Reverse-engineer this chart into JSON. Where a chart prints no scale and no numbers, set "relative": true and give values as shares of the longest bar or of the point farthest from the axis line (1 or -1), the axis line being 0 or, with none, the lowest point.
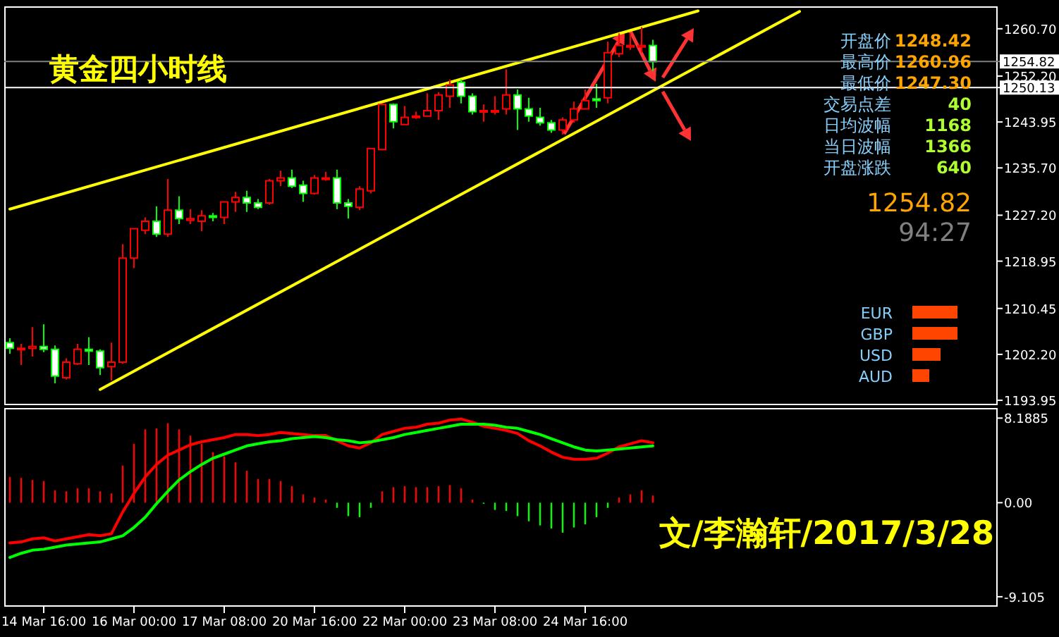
{
  "chart_data": [
    {
      "type": "candlestick",
      "title": "黄金四小时线",
      "categories": [
        null,
        null,
        null,
        null,
        null,
        null,
        null,
        null,
        null,
        null,
        null,
        null,
        null,
        null,
        null,
        null,
        null,
        null,
        null,
        null,
        null,
        null,
        null,
        null,
        null,
        null,
        null,
        null,
        null,
        null,
        null,
        null,
        null,
        null,
        null,
        null,
        null,
        null,
        null,
        null,
        null,
        null,
        null,
        null,
        null,
        null,
        null,
        null,
        null,
        null,
        null,
        null,
        null,
        null,
        null,
        null,
        null,
        null,
        null,
        null,
        null,
        null,
        null,
        null,
        null,
        null,
        null,
        null,
        null,
        null,
        null,
        null,
        null,
        null,
        null,
        null,
        null,
        null,
        null,
        null,
        null,
        null,
        null,
        null,
        null,
        null,
        null,
        null
      ],
      "ohlc": [
        [
          1204.3,
          1205.1,
          1202.3,
          1203.3
        ],
        [
          1203.1,
          1204.1,
          1200.3,
          1203.3
        ],
        [
          1203.3,
          1207.1,
          1201.8,
          1203.6
        ],
        [
          1203.6,
          1207.6,
          1202.6,
          1203.1
        ],
        [
          1203.1,
          1203.8,
          1197.0,
          1198.3
        ],
        [
          1198.0,
          1201.5,
          1197.7,
          1200.8
        ],
        [
          1200.5,
          1204.1,
          1200.3,
          1203.1
        ],
        [
          1203.1,
          1205.3,
          1200.3,
          1202.8
        ],
        [
          1202.8,
          1203.1,
          1198.5,
          1199.8
        ],
        [
          1200.0,
          1204.3,
          1197.5,
          1200.8
        ],
        [
          1200.8,
          1222.0,
          1200.5,
          1219.5
        ],
        [
          1219.5,
          1224.8,
          1217.7,
          1224.8
        ],
        [
          1224.5,
          1226.8,
          1223.8,
          1226.1
        ],
        [
          1226.1,
          1228.8,
          1223.3,
          1223.8
        ],
        [
          1223.8,
          1233.7,
          1223.3,
          1228.1
        ],
        [
          1228.1,
          1230.6,
          1225.6,
          1226.6
        ],
        [
          1226.3,
          1228.3,
          1225.6,
          1226.6
        ],
        [
          1226.1,
          1228.1,
          1224.3,
          1227.1
        ],
        [
          1227.1,
          1227.6,
          1226.1,
          1226.8
        ],
        [
          1226.8,
          1229.6,
          1225.6,
          1229.6
        ],
        [
          1229.6,
          1231.4,
          1227.8,
          1230.4
        ],
        [
          1230.4,
          1231.6,
          1227.8,
          1229.4
        ],
        [
          1229.4,
          1230.1,
          1228.3,
          1228.6
        ],
        [
          1229.4,
          1233.7,
          1229.1,
          1233.4
        ],
        [
          1233.4,
          1235.2,
          1232.4,
          1233.9
        ],
        [
          1233.9,
          1235.4,
          1232.1,
          1232.4
        ],
        [
          1232.6,
          1233.4,
          1229.6,
          1231.1
        ],
        [
          1231.1,
          1234.4,
          1230.9,
          1233.9
        ],
        [
          1233.7,
          1235.0,
          1233.4,
          1233.9
        ],
        [
          1233.9,
          1235.4,
          1228.3,
          1229.4
        ],
        [
          1229.4,
          1230.1,
          1226.6,
          1228.8
        ],
        [
          1228.6,
          1232.4,
          1228.1,
          1231.9
        ],
        [
          1231.6,
          1239.2,
          1231.1,
          1239.2
        ],
        [
          1239.0,
          1247.3,
          1239.0,
          1247.1
        ],
        [
          1247.1,
          1247.3,
          1242.8,
          1244.0
        ],
        [
          1243.5,
          1246.8,
          1243.5,
          1244.8
        ],
        [
          1244.8,
          1245.8,
          1244.5,
          1245.0
        ],
        [
          1245.0,
          1249.1,
          1245.0,
          1246.0
        ],
        [
          1246.0,
          1249.3,
          1244.3,
          1248.8
        ],
        [
          1248.6,
          1251.6,
          1246.5,
          1250.6
        ],
        [
          1251.1,
          1251.6,
          1247.3,
          1248.6
        ],
        [
          1248.6,
          1249.1,
          1245.3,
          1245.8
        ],
        [
          1245.8,
          1247.1,
          1244.0,
          1246.0
        ],
        [
          1245.8,
          1248.6,
          1245.3,
          1246.0
        ],
        [
          1246.3,
          1253.4,
          1245.3,
          1248.8
        ],
        [
          1248.8,
          1249.8,
          1242.5,
          1246.3
        ],
        [
          1246.3,
          1248.3,
          1244.0,
          1245.0
        ],
        [
          1244.8,
          1246.5,
          1243.3,
          1243.8
        ],
        [
          1243.8,
          1244.3,
          1242.0,
          1242.5
        ],
        [
          1242.5,
          1244.8,
          1241.7,
          1244.3
        ],
        [
          1244.3,
          1247.6,
          1243.8,
          1246.3
        ],
        [
          1246.3,
          1249.8,
          1246.3,
          1247.8
        ],
        [
          1248.1,
          1250.8,
          1246.5,
          1247.8
        ],
        [
          1248.3,
          1258.4,
          1247.3,
          1256.4
        ],
        [
          1256.2,
          1259.9,
          1255.6,
          1257.7
        ],
        [
          1257.4,
          1259.9,
          1256.9,
          1257.7
        ],
        [
          1257.4,
          1261.0,
          1256.4,
          1257.7
        ],
        [
          1257.7,
          1258.7,
          1253.1,
          1254.8
        ],
        null,
        null,
        null,
        null,
        null,
        null,
        null,
        null,
        null,
        null,
        null,
        null,
        null,
        null,
        null,
        null,
        null,
        null,
        null,
        null,
        null,
        null,
        null,
        null,
        null,
        null,
        null,
        null,
        null,
        null
      ],
      "colors": [
        "#00ff00",
        "#ff0000",
        "#ff0000",
        "#00ff00",
        "#00ff00",
        "#ff0000",
        "#ff0000",
        "#00ff00",
        "#00ff00",
        "#ff0000",
        "#ff0000",
        "#ff0000",
        "#ff0000",
        "#00ff00",
        "#ff0000",
        "#00ff00",
        "#ff0000",
        "#ff0000",
        "#00ff00",
        "#ff0000",
        "#ff0000",
        "#00ff00",
        "#00ff00",
        "#ff0000",
        "#ff0000",
        "#00ff00",
        "#00ff00",
        "#ff0000",
        "#ff0000",
        "#00ff00",
        "#00ff00",
        "#ff0000",
        "#ff0000",
        "#ff0000",
        "#00ff00",
        "#ff0000",
        "#ff0000",
        "#ff0000",
        "#ff0000",
        "#ff0000",
        "#00ff00",
        "#00ff00",
        "#ff0000",
        "#ff0000",
        "#ff0000",
        "#00ff00",
        "#00ff00",
        "#00ff00",
        "#00ff00",
        "#ff0000",
        "#ff0000",
        "#ff0000",
        "#00ff00",
        "#ff0000",
        "#ff0000",
        "#ff0000",
        "#ff0000",
        "#00ff00",
        null,
        null,
        null,
        null,
        null,
        null,
        null,
        null,
        null,
        null,
        null,
        null,
        null,
        null,
        null,
        null,
        null,
        null,
        null,
        null,
        null,
        null,
        null,
        null,
        null,
        null,
        null,
        null,
        null,
        null
      ],
      "series": [
        {
          "type": "line",
          "color": "#ffff00",
          "values": [
            1228.3,
            null,
            null,
            null,
            null,
            null,
            null,
            null,
            null,
            null,
            null,
            null,
            null,
            null,
            null,
            null,
            null,
            null,
            null,
            null,
            null,
            null,
            null,
            null,
            null,
            null,
            null,
            null,
            null,
            null,
            null,
            null,
            null,
            null,
            null,
            null,
            null,
            null,
            null,
            null,
            null,
            null,
            null,
            null,
            null,
            null,
            null,
            null,
            null,
            null,
            null,
            null,
            null,
            null,
            null,
            null,
            null,
            null,
            null,
            null,
            null,
            1263.9,
            null,
            null,
            null,
            null,
            null,
            null,
            null,
            null,
            null,
            null,
            null,
            null,
            null,
            null,
            null,
            null,
            null,
            null,
            null,
            null,
            null,
            null,
            null,
            null,
            null,
            null
          ]
        },
        {
          "type": "line",
          "color": "#ffff00",
          "values": [
            null,
            null,
            null,
            null,
            null,
            null,
            null,
            null,
            1195.9,
            null,
            null,
            null,
            null,
            null,
            null,
            null,
            null,
            null,
            null,
            null,
            null,
            null,
            null,
            null,
            null,
            null,
            null,
            null,
            null,
            null,
            null,
            null,
            null,
            null,
            null,
            null,
            null,
            null,
            null,
            null,
            null,
            null,
            null,
            null,
            null,
            null,
            null,
            null,
            null,
            null,
            null,
            null,
            null,
            null,
            null,
            null,
            null,
            null,
            null,
            null,
            null,
            null,
            null,
            null,
            null,
            null,
            null,
            null,
            null,
            null,
            1263.8,
            null,
            null,
            null,
            null,
            null,
            null,
            null,
            null,
            null,
            null,
            null,
            null,
            null,
            null,
            null,
            null,
            null
          ]
        }
      ],
      "ylim": [
        1193.2,
        1264.6
      ],
      "yticks": [
        1193.95,
        {
          "value": 1202.2,
          "label": "1202.20"
        },
        1210.45,
        1218.95,
        {
          "value": 1227.2,
          "label": "1227.20"
        },
        {
          "value": 1235.7,
          "label": "1235.70"
        },
        1243.95,
        {
          "value": 1252.2,
          "label": "1252.20"
        },
        {
          "value": 1260.7,
          "label": "1260.70"
        }
      ],
      "tick_labels": "y",
      "ref_lines": [
        {
          "axis": "y",
          "value": 1254.82,
          "label": "1254.82",
          "color": "#808080"
        },
        {
          "axis": "y",
          "value": 1250.13,
          "label": "1250.13",
          "color": "#ffffff"
        }
      ],
      "annotations": [
        "开盘价",
        "1248.42",
        "最高价",
        "1260.96",
        "最低价",
        "1247.30",
        "交易点差",
        "40",
        "日均波幅",
        "1168",
        "当日波幅",
        "1366",
        "开盘涨跌",
        "640",
        "1254.82",
        "94:27"
      ]
    },
    {
      "type": "bar",
      "categories": [
        null,
        null,
        null,
        "14 Mar 16:00",
        null,
        null,
        null,
        null,
        null,
        null,
        null,
        "16 Mar 00:00",
        null,
        null,
        null,
        null,
        null,
        null,
        null,
        "17 Mar 08:00",
        null,
        null,
        null,
        null,
        null,
        null,
        null,
        "20 Mar 16:00",
        null,
        null,
        null,
        null,
        null,
        null,
        null,
        "22 Mar 00:00",
        null,
        null,
        null,
        null,
        null,
        null,
        null,
        "23 Mar 08:00",
        null,
        null,
        null,
        null,
        null,
        null,
        null,
        "24 Mar 16:00",
        null,
        null,
        null,
        null,
        null,
        null,
        null,
        null,
        null,
        null,
        null,
        null,
        null,
        null,
        null,
        null,
        null,
        null,
        null,
        null,
        null,
        null,
        null,
        null,
        null,
        null,
        null,
        null,
        null,
        null,
        null,
        null,
        null,
        null,
        null,
        null
      ],
      "series": [
        {
          "type": "bar",
          "values": [
            2.5,
            2.4,
            2.2,
            2.1,
            1.2,
            1.1,
            1.4,
            1.4,
            1.1,
            0.9,
            3.6,
            5.7,
            7.1,
            7.2,
            7.7,
            7.1,
            6.5,
            5.7,
            4.9,
            4.5,
            3.9,
            3.1,
            2.3,
            2.3,
            2.1,
            1.6,
            0.8,
            0.5,
            0.3,
            -0.5,
            -1.3,
            -1.4,
            -0.5,
            1.1,
            1.5,
            1.6,
            1.5,
            1.5,
            1.6,
            1.7,
            1.4,
            0.3,
            -0.1,
            -0.7,
            -0.8,
            -1.3,
            -1.8,
            -2.2,
            -2.5,
            -2.9,
            -2.4,
            -2.1,
            -1.4,
            -0.5,
            0.5,
            0.8,
            1.2,
            0.7,
            null,
            null,
            null,
            null,
            null,
            null,
            null,
            null,
            null,
            null,
            null,
            null,
            null,
            null,
            null,
            null,
            null,
            null,
            null,
            null,
            null,
            null,
            null,
            null,
            null,
            null,
            null,
            null,
            null,
            null
          ],
          "colors": [
            "#ff0000",
            "#ff0000",
            "#ff0000",
            "#ff0000",
            "#ff0000",
            "#ff0000",
            "#ff0000",
            "#ff0000",
            "#ff0000",
            "#ff0000",
            "#ff0000",
            "#ff0000",
            "#ff0000",
            "#ff0000",
            "#ff0000",
            "#ff0000",
            "#ff0000",
            "#ff0000",
            "#ff0000",
            "#ff0000",
            "#ff0000",
            "#ff0000",
            "#ff0000",
            "#ff0000",
            "#ff0000",
            "#ff0000",
            "#ff0000",
            "#ff0000",
            "#ff0000",
            "#00ff00",
            "#00ff00",
            "#00ff00",
            "#00ff00",
            "#ff0000",
            "#ff0000",
            "#ff0000",
            "#ff0000",
            "#ff0000",
            "#ff0000",
            "#ff0000",
            "#ff0000",
            "#ff0000",
            "#00ff00",
            "#00ff00",
            "#00ff00",
            "#00ff00",
            "#00ff00",
            "#00ff00",
            "#00ff00",
            "#00ff00",
            "#00ff00",
            "#00ff00",
            "#00ff00",
            "#00ff00",
            "#ff0000",
            "#ff0000",
            "#ff0000",
            "#ff0000",
            null,
            null,
            null,
            null,
            null,
            null,
            null,
            null,
            null,
            null,
            null,
            null,
            null,
            null,
            null,
            null,
            null,
            null,
            null,
            null,
            null,
            null,
            null,
            null,
            null,
            null,
            null,
            null,
            null,
            null
          ]
        },
        {
          "type": "line",
          "color": "#ff0000",
          "values": [
            -3.9,
            -3.8,
            -3.5,
            -3.4,
            -3.7,
            -3.5,
            -3.3,
            -3.1,
            -3.2,
            -3.0,
            -0.9,
            0.9,
            2.5,
            3.7,
            4.6,
            5.1,
            5.6,
            5.9,
            6.1,
            6.3,
            6.6,
            6.6,
            6.5,
            6.6,
            6.8,
            6.7,
            6.6,
            6.5,
            6.5,
            6.0,
            5.5,
            5.3,
            5.8,
            6.6,
            6.9,
            7.2,
            7.3,
            7.6,
            7.7,
            8.0,
            8.1,
            7.8,
            7.4,
            7.2,
            7.0,
            6.7,
            6.0,
            5.5,
            4.9,
            4.4,
            4.2,
            4.2,
            4.3,
            4.8,
            5.4,
            5.7,
            6.0,
            5.8,
            null,
            null,
            null,
            null,
            null,
            null,
            null,
            null,
            null,
            null,
            null,
            null,
            null,
            null,
            null,
            null,
            null,
            null,
            null,
            null,
            null,
            null,
            null,
            null,
            null,
            null,
            null,
            null,
            null,
            null
          ]
        },
        {
          "type": "line",
          "color": "#00ff00",
          "values": [
            -5.3,
            -4.9,
            -4.6,
            -4.5,
            -4.3,
            -4.1,
            -4.0,
            -3.9,
            -3.8,
            -3.5,
            -3.2,
            -2.4,
            -1.4,
            -0.1,
            1.1,
            2.2,
            3.0,
            3.7,
            4.3,
            4.7,
            5.1,
            5.5,
            5.7,
            5.9,
            6.0,
            6.2,
            6.3,
            6.4,
            6.3,
            6.1,
            6.0,
            5.8,
            5.9,
            6.1,
            6.3,
            6.6,
            6.8,
            7.0,
            7.2,
            7.4,
            7.6,
            7.6,
            7.6,
            7.5,
            7.3,
            7.2,
            6.9,
            6.6,
            6.2,
            5.8,
            5.4,
            5.1,
            5.0,
            5.1,
            5.2,
            5.3,
            5.4,
            5.5,
            null,
            null,
            null,
            null,
            null,
            null,
            null,
            null,
            null,
            null,
            null,
            null,
            null,
            null,
            null,
            null,
            null,
            null,
            null,
            null,
            null,
            null,
            null,
            null,
            null,
            null,
            null,
            null,
            null,
            null
          ]
        }
      ],
      "ylim": [
        -10.0,
        9.1
      ],
      "yticks": [
        8.1885,
        {
          "value": 0,
          "label": "0.00"
        },
        -9.105
      ],
      "annotations": [
        "文/李瀚轩/2017/3/28"
      ]
    },
    {
      "type": "bar",
      "orientation": "horizontal",
      "relative": true,
      "categories": [
        "EUR",
        "GBP",
        "USD",
        "AUD"
      ],
      "values": [
        1,
        1,
        0.625,
        0.375
      ],
      "color": "#ff4500"
    }
  ]
}
